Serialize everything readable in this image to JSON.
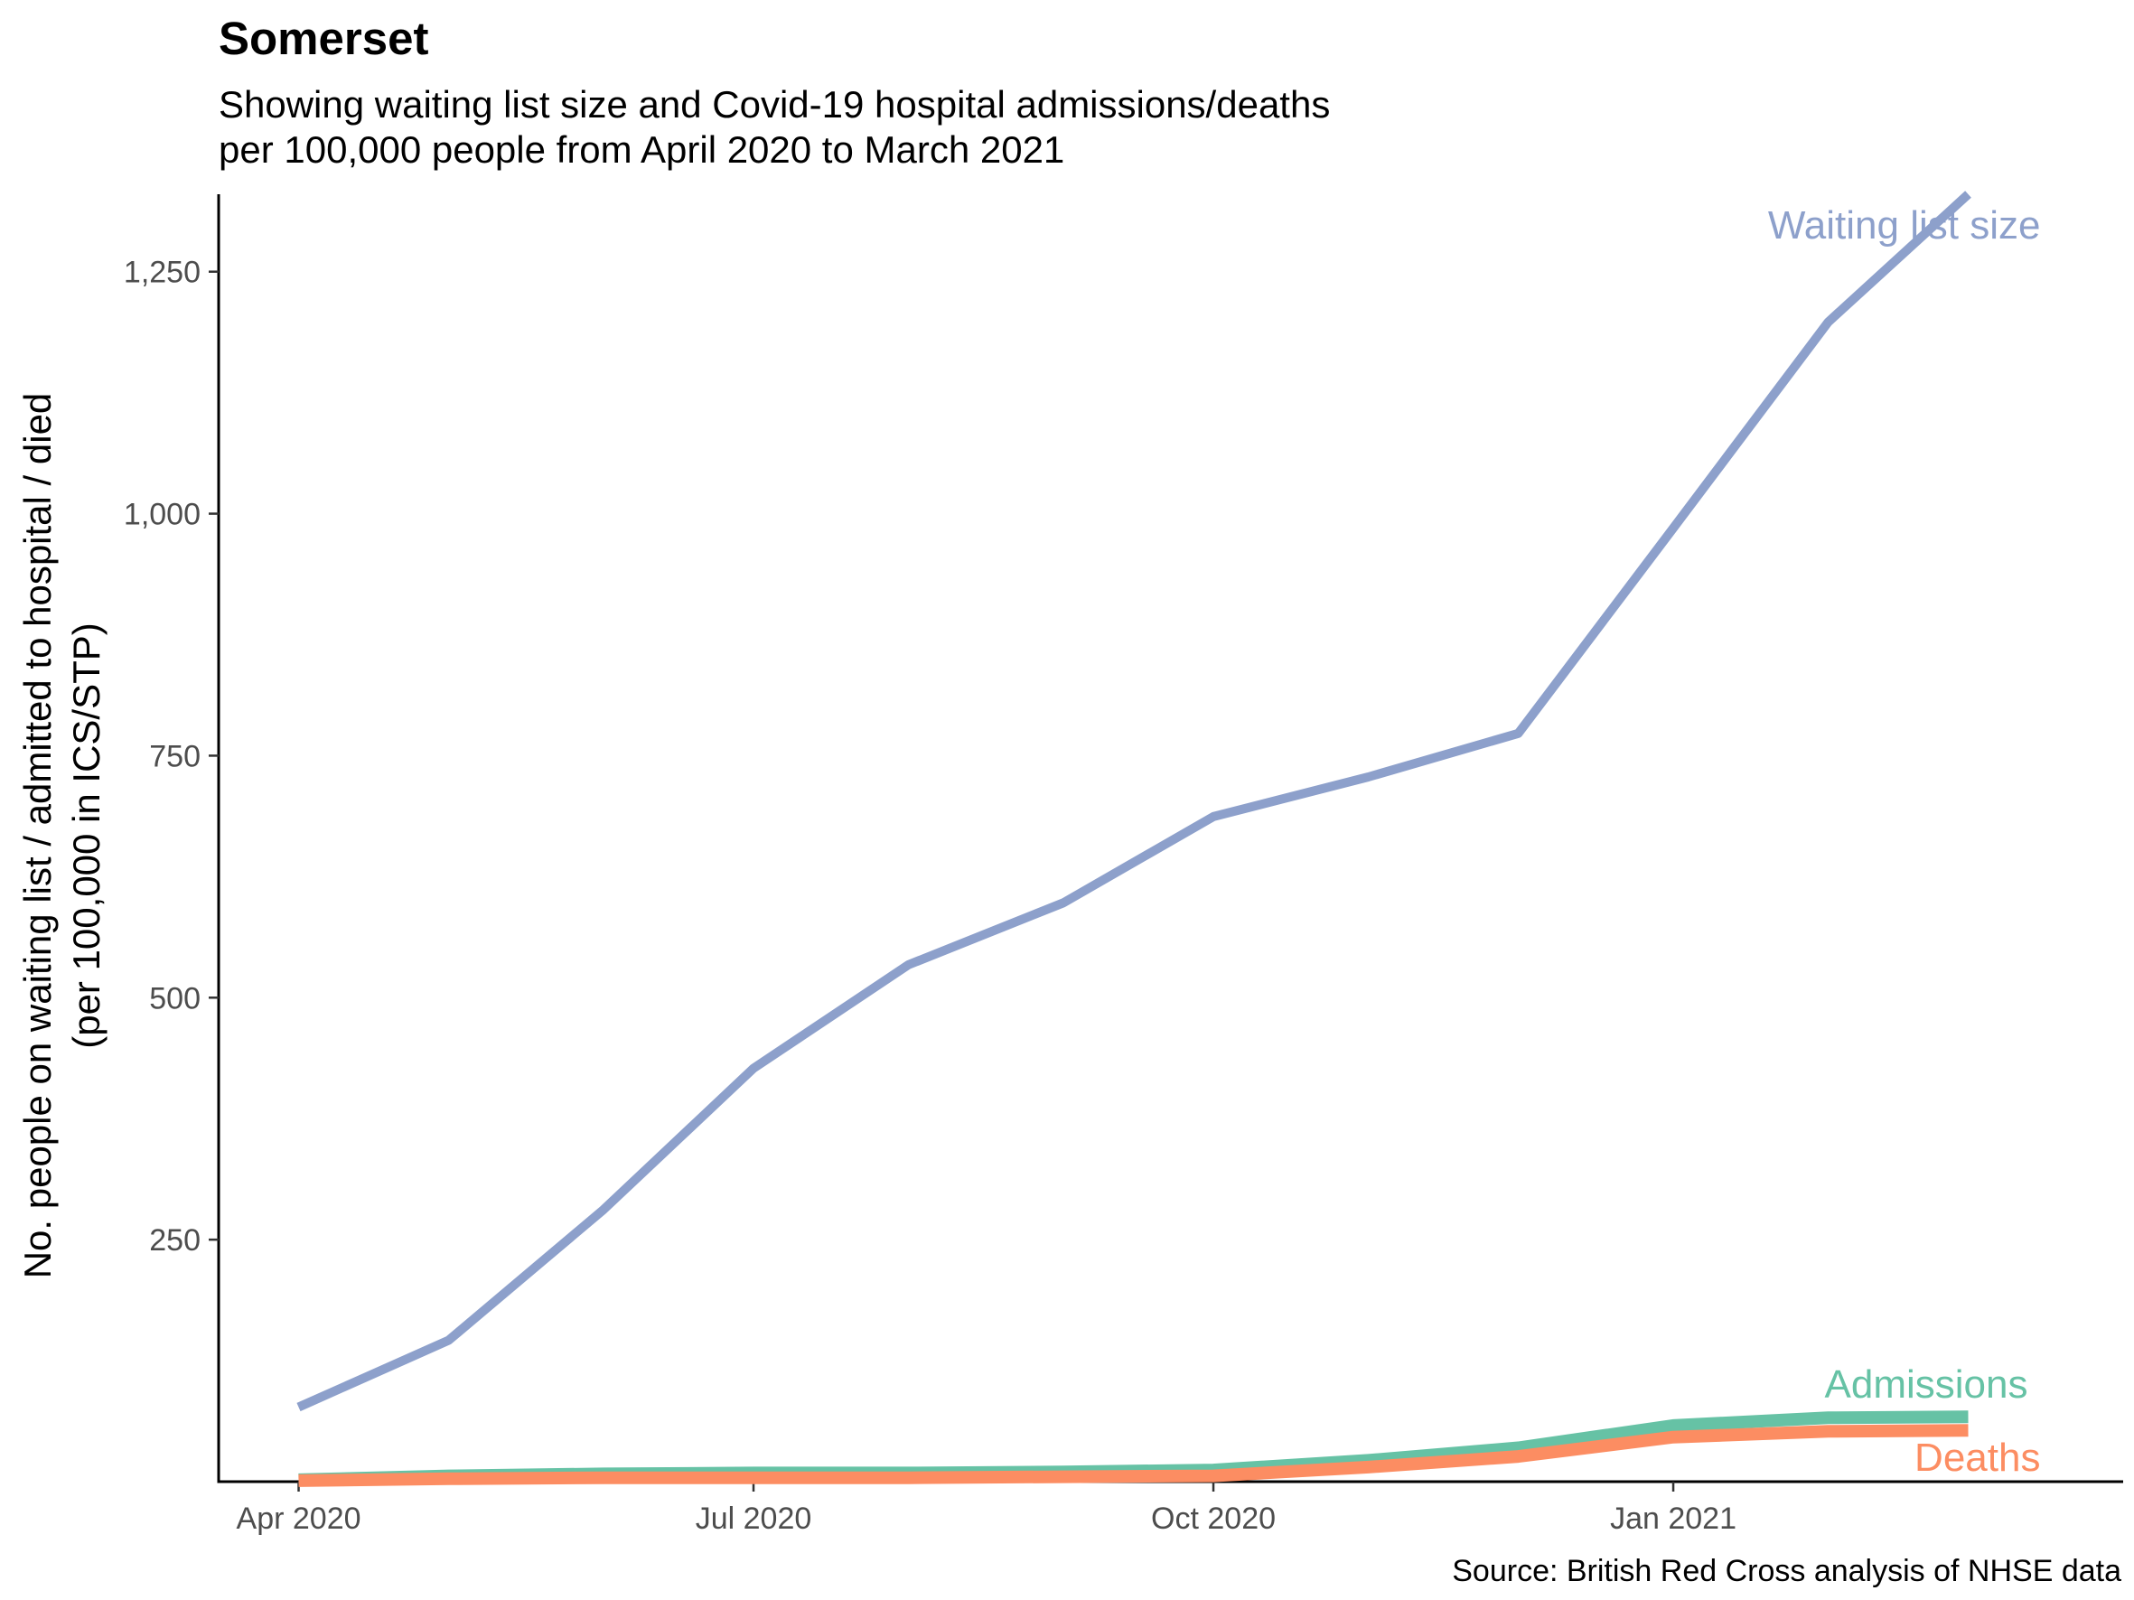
{
  "chart_data": {
    "type": "line",
    "title": "Somerset",
    "subtitle": [
      "Showing waiting list size and Covid-19 hospital admissions/deaths",
      "per 100,000 people from April 2020 to March 2021"
    ],
    "ylabel": [
      "No. people on waiting list / admitted to hospital / died",
      "(per 100,000 in ICS/STP)"
    ],
    "xlabel": "",
    "caption": "Source: British Red Cross analysis of NHSE data",
    "x": [
      "2020-04",
      "2020-05",
      "2020-06",
      "2020-07",
      "2020-08",
      "2020-09",
      "2020-10",
      "2020-11",
      "2020-12",
      "2021-01",
      "2021-02",
      "2021-03"
    ],
    "x_ticks": [
      {
        "date": "2020-04",
        "label": "Apr 2020"
      },
      {
        "date": "2020-07",
        "label": "Jul 2020"
      },
      {
        "date": "2020-10",
        "label": "Oct 2020"
      },
      {
        "date": "2021-01",
        "label": "Jan 2021"
      }
    ],
    "y_ticks": [
      {
        "value": 250,
        "label": "250"
      },
      {
        "value": 500,
        "label": "500"
      },
      {
        "value": 750,
        "label": "750"
      },
      {
        "value": 1000,
        "label": "1,000"
      },
      {
        "value": 1250,
        "label": "1,250"
      }
    ],
    "xlim": [
      "2020-03-16",
      "2021-04-01"
    ],
    "ylim": [
      0,
      1330
    ],
    "grid": false,
    "legend": "direct labels at line ends",
    "series": [
      {
        "name": "Waiting list size",
        "color": "#8da0cb",
        "values": [
          77,
          146,
          281,
          427,
          534,
          598,
          687,
          728,
          773,
          985,
          1198,
          1330
        ]
      },
      {
        "name": "Admissions",
        "color": "#66c2a5",
        "values": [
          2,
          6,
          8,
          9,
          9,
          10,
          12,
          22,
          35,
          58,
          66,
          67
        ]
      },
      {
        "name": "Deaths",
        "color": "#fc8d62",
        "values": [
          1,
          3,
          4,
          4,
          4,
          5,
          6,
          15,
          26,
          46,
          52,
          53
        ]
      }
    ]
  }
}
